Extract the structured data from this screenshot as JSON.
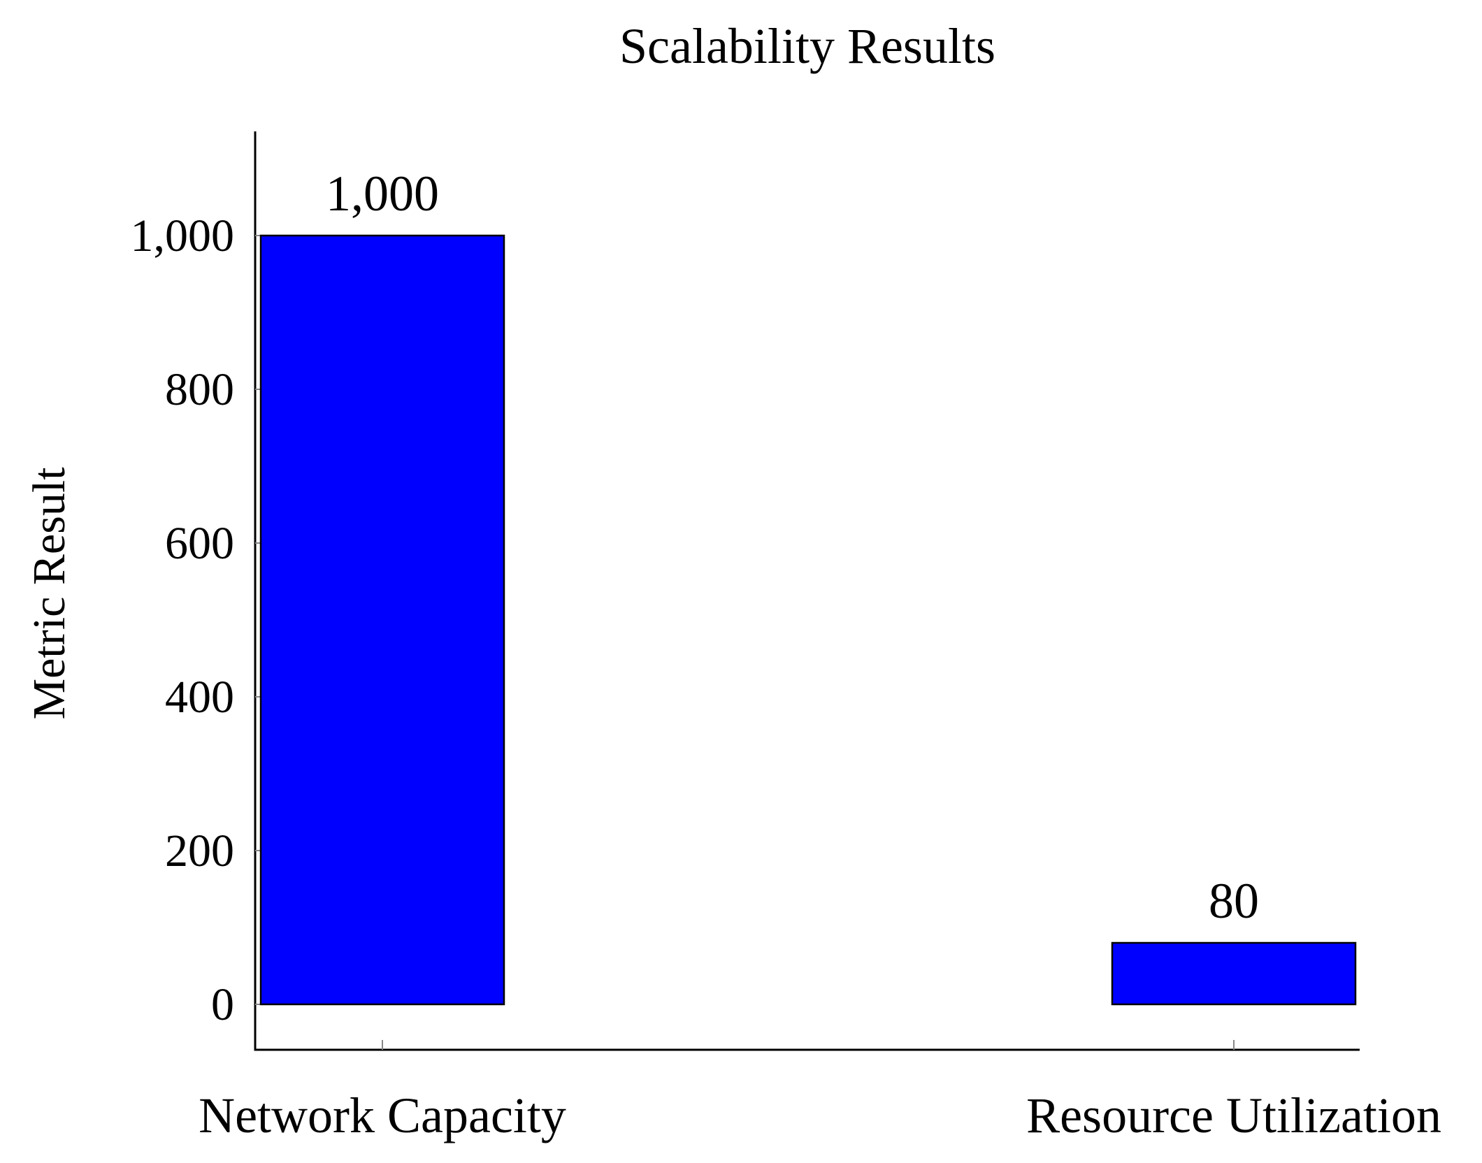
{
  "chart_data": {
    "type": "bar",
    "title": "Scalability Results",
    "xlabel": "",
    "ylabel": "Metric Result",
    "categories": [
      "Network Capacity",
      "Resource Utilization"
    ],
    "values": [
      1000,
      80
    ],
    "value_labels": [
      "1,000",
      "80"
    ],
    "yticks": [
      0,
      200,
      400,
      600,
      800,
      1000
    ],
    "ytick_labels": [
      "0",
      "200",
      "400",
      "600",
      "800",
      "1,000"
    ],
    "ylim": [
      -58,
      1137
    ],
    "grid": false,
    "legend": "none",
    "bar_color": "#0000ff",
    "bar_edge_color": "#000000"
  }
}
